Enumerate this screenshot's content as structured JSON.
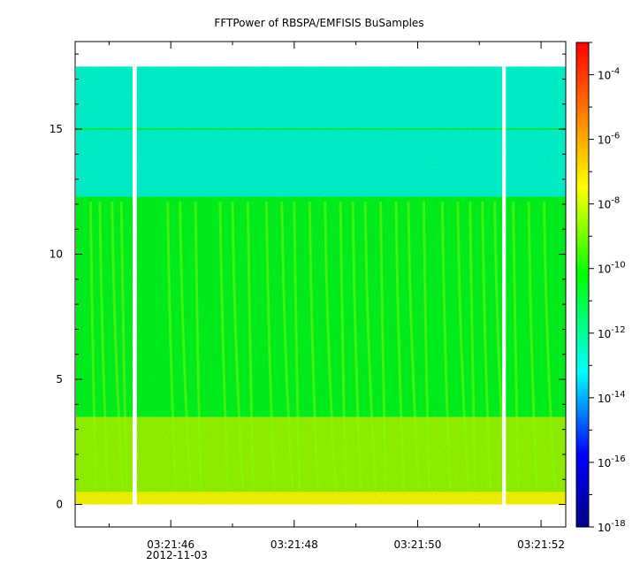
{
  "chart_data": {
    "type": "heatmap",
    "title": "FFTPower of RBSPA/EMFISIS  BuSamples",
    "xlabel": "",
    "ylabel": "",
    "date_label": "2012-11-03",
    "x_ticks": [
      {
        "label": "03:21:46",
        "t": 46
      },
      {
        "label": "03:21:48",
        "t": 48
      },
      {
        "label": "03:21:50",
        "t": 50
      },
      {
        "label": "03:21:52",
        "t": 52
      }
    ],
    "x_minor_ticks": [
      45,
      47,
      49,
      51
    ],
    "xlim_seconds": [
      44.45,
      52.4
    ],
    "y_ticks": [
      0,
      5,
      10,
      15
    ],
    "ylim": [
      -0.9,
      18.5
    ],
    "data_ylim": [
      0,
      17.5
    ],
    "data_gaps_seconds": [
      [
        45.38,
        45.45
      ],
      [
        51.37,
        51.43
      ]
    ],
    "colorbar": {
      "scale": "log",
      "range": [
        1e-18,
        0.001
      ],
      "tick_labels": [
        {
          "base": "10",
          "exp": "-18",
          "v": -18
        },
        {
          "base": "10",
          "exp": "-16",
          "v": -16
        },
        {
          "base": "10",
          "exp": "-14",
          "v": -14
        },
        {
          "base": "10",
          "exp": "-12",
          "v": -12
        },
        {
          "base": "10",
          "exp": "-10",
          "v": -10
        },
        {
          "base": "10",
          "exp": "-8",
          "v": -8
        },
        {
          "base": "10",
          "exp": "-6",
          "v": -6
        },
        {
          "base": "10",
          "exp": "-4",
          "v": -4
        }
      ],
      "colors": [
        "#00008b",
        "#0000ff",
        "#00ffff",
        "#00ff00",
        "#ffff00",
        "#ff8000",
        "#ff0000"
      ]
    },
    "bands": [
      {
        "name": "low",
        "y": [
          0,
          0.5
        ],
        "log_power": -8.0
      },
      {
        "name": "lower",
        "y": [
          0.5,
          3.5
        ],
        "log_power": -9.0
      },
      {
        "name": "middle",
        "y": [
          3.5,
          12.3
        ],
        "log_power": -10.8
      },
      {
        "name": "upper",
        "y": [
          12.3,
          17.5
        ],
        "log_power": -12.6
      }
    ],
    "line_at_y": 15.0,
    "chorus_elements_seconds": [
      44.7,
      44.85,
      45.05,
      45.2,
      45.95,
      46.15,
      46.4,
      46.8,
      47.0,
      47.25,
      47.55,
      47.8,
      48.0,
      48.25,
      48.5,
      48.75,
      48.95,
      49.15,
      49.4,
      49.65,
      49.85,
      50.1,
      50.4,
      50.65,
      50.85,
      51.05,
      51.25,
      51.55,
      51.8,
      52.05
    ]
  }
}
